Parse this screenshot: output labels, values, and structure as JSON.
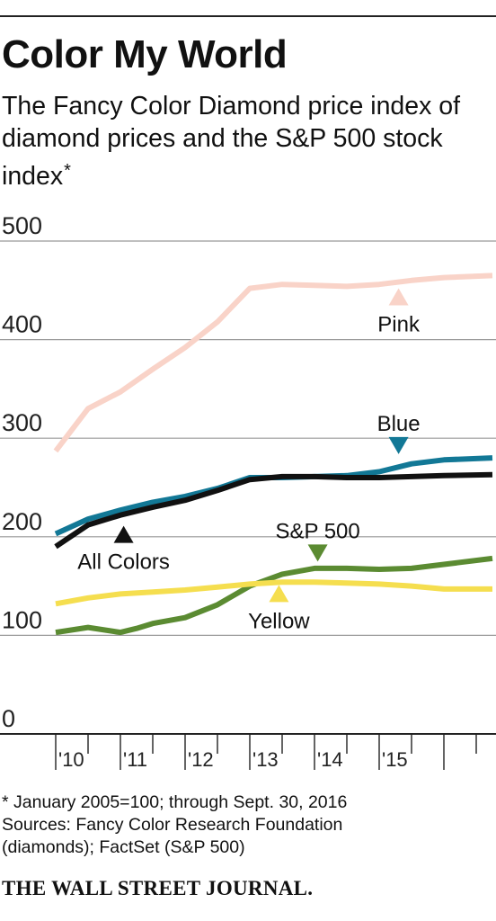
{
  "header": {
    "title": "Color My World",
    "subtitle": "The Fancy Color Diamond price index of diamond prices and the S&P 500 stock index",
    "subtitle_marker": "*"
  },
  "chart_data": {
    "type": "line",
    "ylim": [
      0,
      500
    ],
    "yticks": [
      0,
      100,
      200,
      300,
      400,
      500
    ],
    "xlim": [
      2010.0,
      2016.75
    ],
    "xtick_labels": [
      "'10",
      "'11",
      "'12",
      "'13",
      "'14",
      "'15"
    ],
    "xtick_positions": [
      2010,
      2011,
      2012,
      2013,
      2014,
      2015
    ],
    "grid": true,
    "series": [
      {
        "name": "Pink",
        "color": "#f9d3c8",
        "x": [
          2010.0,
          2010.5,
          2011.0,
          2011.5,
          2012.0,
          2012.5,
          2013.0,
          2013.5,
          2014.0,
          2014.5,
          2015.0,
          2015.5,
          2016.0,
          2016.75
        ],
        "y": [
          287,
          330,
          347,
          370,
          392,
          418,
          452,
          456,
          455,
          454,
          456,
          460,
          463,
          465
        ]
      },
      {
        "name": "Blue",
        "color": "#127896",
        "x": [
          2010.0,
          2010.5,
          2011.0,
          2011.5,
          2012.0,
          2012.5,
          2013.0,
          2013.5,
          2014.0,
          2014.5,
          2015.0,
          2015.5,
          2016.0,
          2016.75
        ],
        "y": [
          203,
          218,
          227,
          235,
          241,
          249,
          260,
          260,
          261,
          262,
          266,
          274,
          278,
          280
        ]
      },
      {
        "name": "All Colors",
        "color": "#111111",
        "x": [
          2010.0,
          2010.5,
          2011.0,
          2011.5,
          2012.0,
          2012.5,
          2013.0,
          2013.5,
          2014.0,
          2014.5,
          2015.0,
          2015.5,
          2016.0,
          2016.75
        ],
        "y": [
          190,
          212,
          222,
          230,
          237,
          247,
          258,
          261,
          261,
          260,
          260,
          261,
          262,
          263
        ]
      },
      {
        "name": "S&P 500",
        "color": "#5b8b32",
        "x": [
          2010.0,
          2010.5,
          2011.0,
          2011.25,
          2011.5,
          2012.0,
          2012.5,
          2013.0,
          2013.5,
          2014.0,
          2014.5,
          2015.0,
          2015.5,
          2016.0,
          2016.75
        ],
        "y": [
          103,
          108,
          103,
          107,
          112,
          118,
          131,
          150,
          162,
          168,
          168,
          167,
          168,
          172,
          178
        ]
      },
      {
        "name": "Yellow",
        "color": "#f5de4f",
        "x": [
          2010.0,
          2010.5,
          2011.0,
          2011.5,
          2012.0,
          2012.5,
          2013.0,
          2013.5,
          2014.0,
          2014.5,
          2015.0,
          2015.5,
          2016.0,
          2016.75
        ],
        "y": [
          132,
          138,
          142,
          144,
          146,
          149,
          152,
          154,
          154,
          153,
          152,
          150,
          147,
          147
        ]
      }
    ],
    "labels": [
      {
        "series": "Pink",
        "text": "Pink",
        "x": 2015.3,
        "y": 443,
        "marker": "up"
      },
      {
        "series": "Blue",
        "text": "Blue",
        "x": 2015.3,
        "y": 293,
        "marker": "down"
      },
      {
        "series": "All Colors",
        "text": "All Colors",
        "x": 2011.05,
        "y": 202,
        "marker": "up"
      },
      {
        "series": "S&P 500",
        "text": "S&P 500",
        "x": 2014.05,
        "y": 184,
        "marker": "down"
      },
      {
        "series": "Yellow",
        "text": "Yellow",
        "x": 2013.45,
        "y": 142,
        "marker": "up"
      }
    ]
  },
  "footnote": {
    "note": "* January 2005=100; through Sept. 30, 2016",
    "sources_line1": "Sources: Fancy Color Research Foundation",
    "sources_line2": "(diamonds); FactSet (S&P 500)"
  },
  "masthead": "THE WALL STREET JOURNAL."
}
